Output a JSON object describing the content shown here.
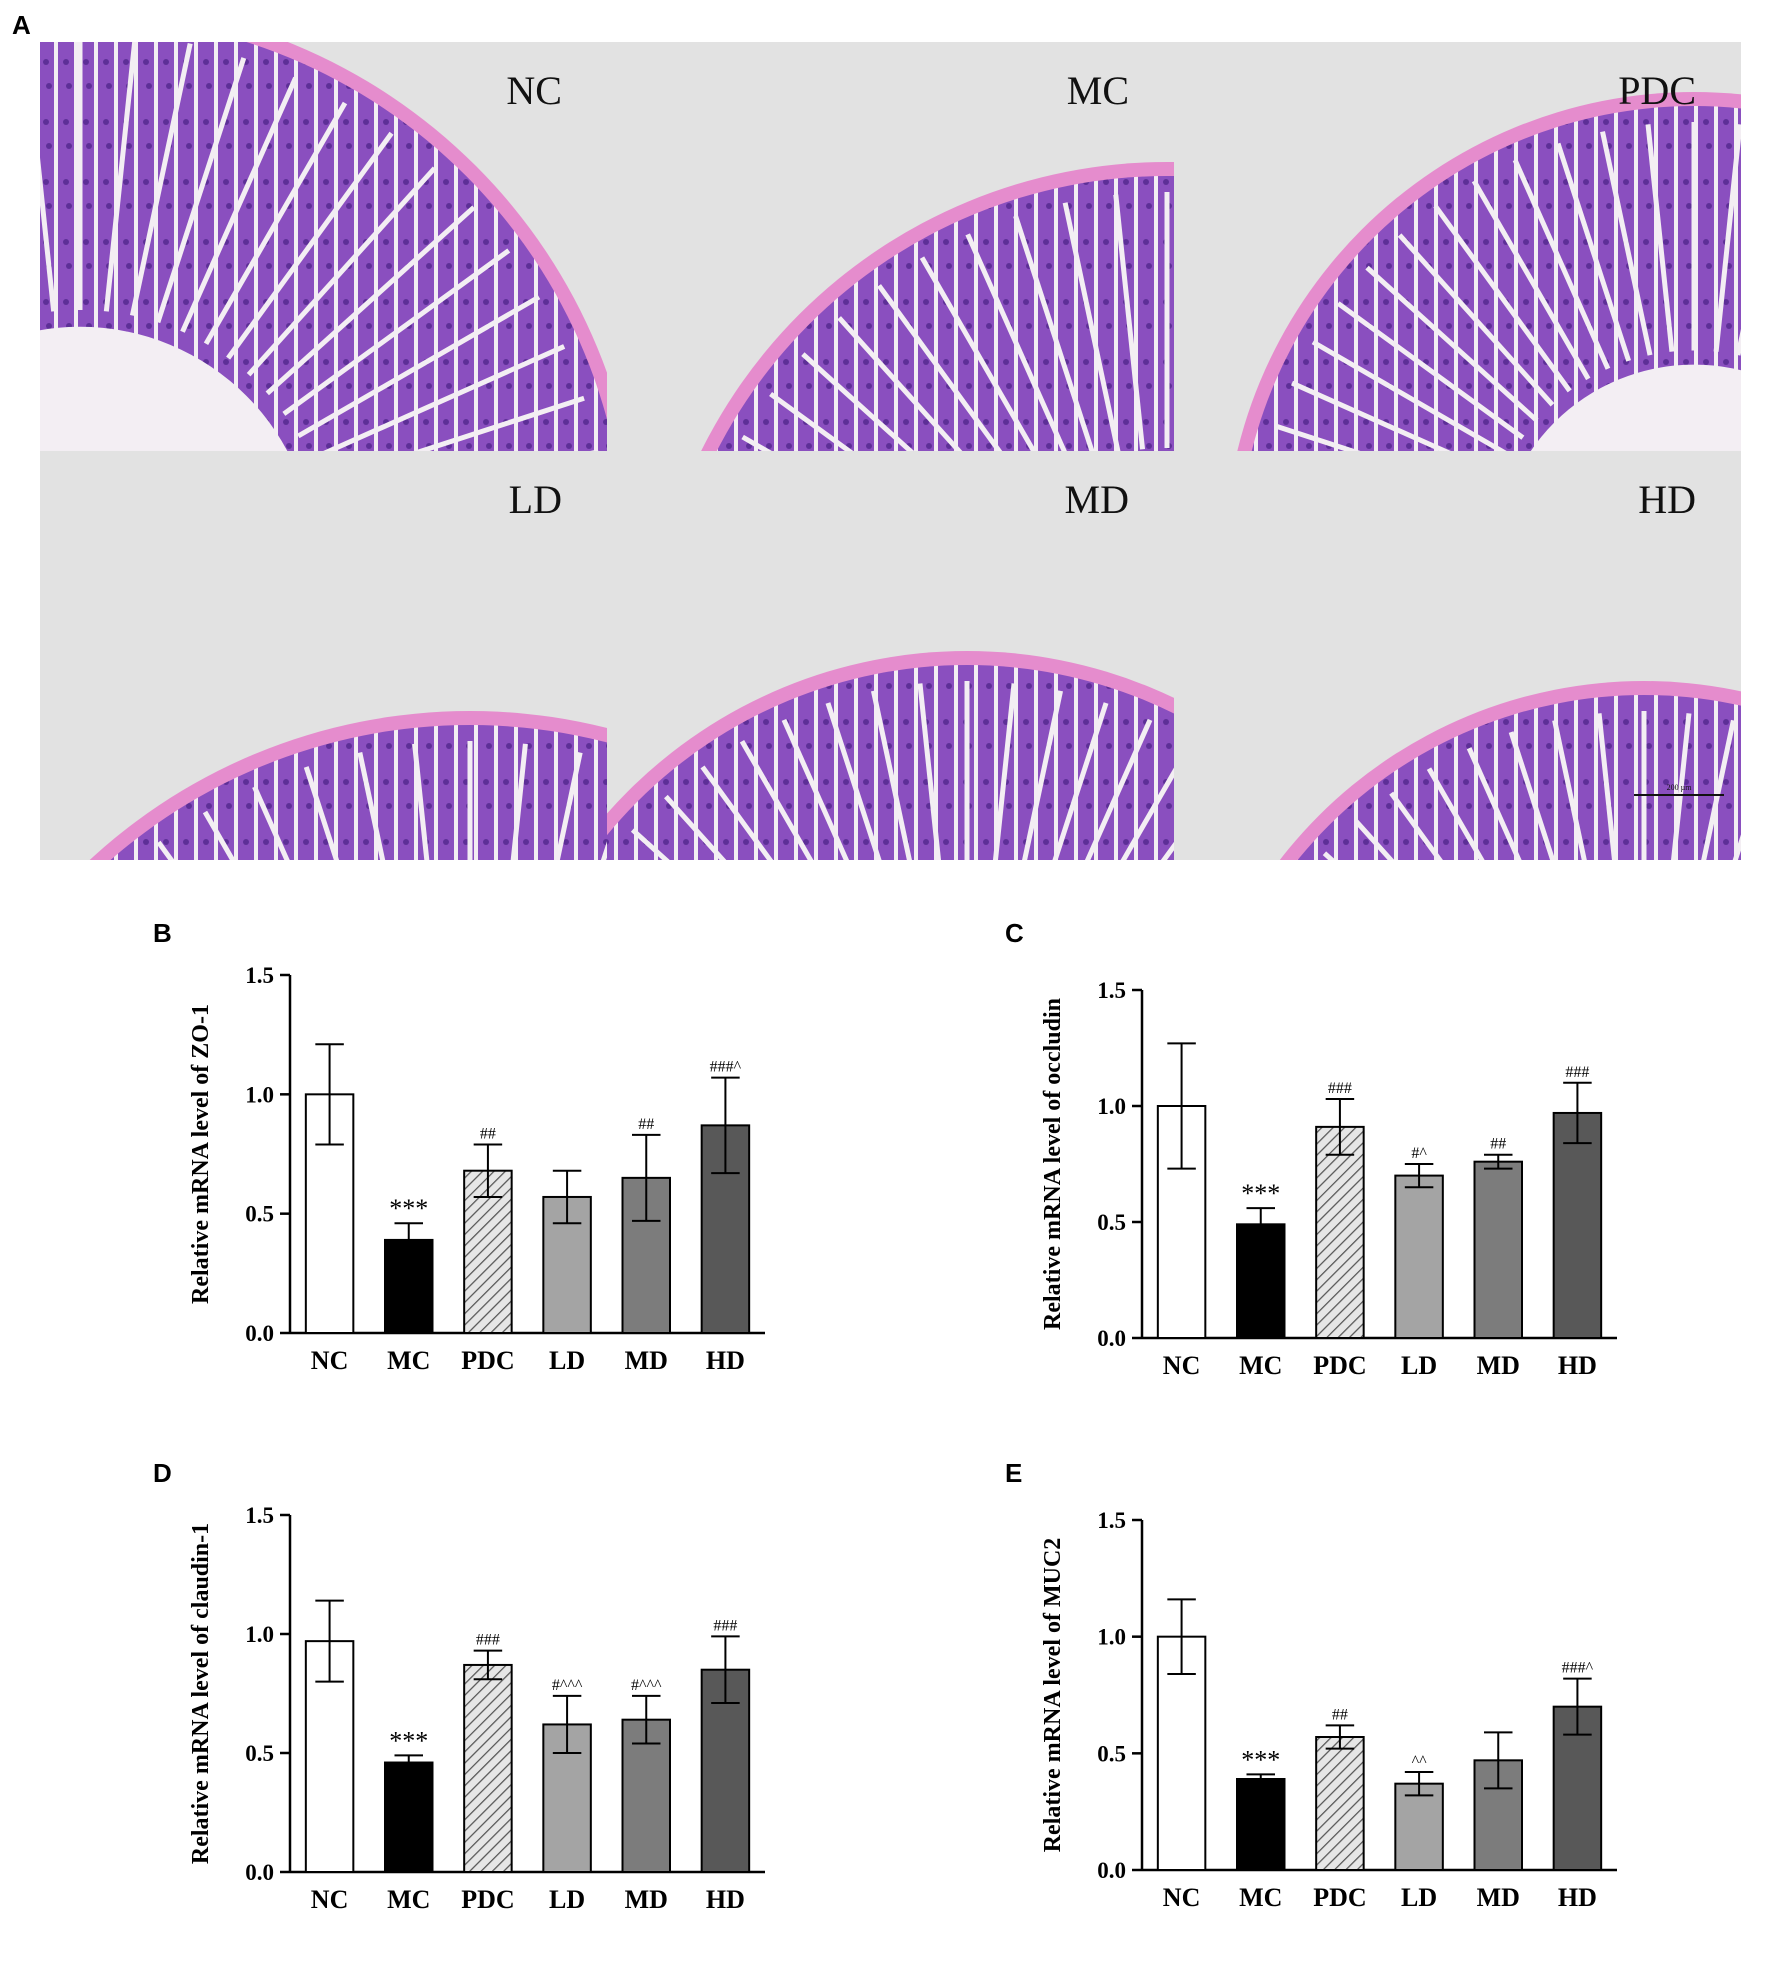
{
  "panel_labels": {
    "a": "A",
    "b": "B",
    "c": "C",
    "d": "D",
    "e": "E"
  },
  "histology": {
    "panel_labels": [
      "NC",
      "MC",
      "PDC",
      "LD",
      "MD",
      "HD"
    ],
    "scale_bar_label": "200 µm",
    "colors": {
      "background": "#e2e2e2",
      "tissue": "#8a4fbf",
      "tissue_dark": "#5d2f97",
      "serosa": "#e58ccd",
      "lumen": "#f3eef3"
    }
  },
  "chart_data": [
    {
      "type": "bar",
      "panel": "B",
      "title": "",
      "xlabel": "",
      "ylabel": "Relative mRNA level of ZO-1",
      "categories": [
        "NC",
        "MC",
        "PDC",
        "LD",
        "MD",
        "HD"
      ],
      "values": [
        1.0,
        0.39,
        0.68,
        0.57,
        0.65,
        0.87
      ],
      "errors": [
        0.21,
        0.07,
        0.11,
        0.11,
        0.18,
        0.2
      ],
      "annotations": [
        "",
        "***",
        "##",
        "",
        "##",
        "###^"
      ],
      "ylim": [
        0,
        1.5
      ],
      "yticks": [
        "0.0",
        "0.5",
        "1.0",
        "1.5"
      ],
      "grid": false
    },
    {
      "type": "bar",
      "panel": "C",
      "title": "",
      "xlabel": "",
      "ylabel": "Relative mRNA level of occludin",
      "categories": [
        "NC",
        "MC",
        "PDC",
        "LD",
        "MD",
        "HD"
      ],
      "values": [
        1.0,
        0.49,
        0.91,
        0.7,
        0.76,
        0.97
      ],
      "errors": [
        0.27,
        0.07,
        0.12,
        0.05,
        0.03,
        0.13
      ],
      "annotations": [
        "",
        "***",
        "###",
        "#^",
        "##",
        "###"
      ],
      "ylim": [
        0,
        1.5
      ],
      "yticks": [
        "0.0",
        "0.5",
        "1.0",
        "1.5"
      ],
      "grid": false
    },
    {
      "type": "bar",
      "panel": "D",
      "title": "",
      "xlabel": "",
      "ylabel": "Relative mRNA level of claudin-1",
      "categories": [
        "NC",
        "MC",
        "PDC",
        "LD",
        "MD",
        "HD"
      ],
      "values": [
        0.97,
        0.46,
        0.87,
        0.62,
        0.64,
        0.85
      ],
      "errors": [
        0.17,
        0.03,
        0.06,
        0.12,
        0.1,
        0.14
      ],
      "annotations": [
        "",
        "***",
        "###",
        "#^^^",
        "#^^^",
        "###"
      ],
      "ylim": [
        0,
        1.5
      ],
      "yticks": [
        "0.0",
        "0.5",
        "1.0",
        "1.5"
      ],
      "grid": false
    },
    {
      "type": "bar",
      "panel": "E",
      "title": "",
      "xlabel": "",
      "ylabel": "Relative mRNA level of MUC2",
      "categories": [
        "NC",
        "MC",
        "PDC",
        "LD",
        "MD",
        "HD"
      ],
      "values": [
        1.0,
        0.39,
        0.57,
        0.37,
        0.47,
        0.7
      ],
      "errors": [
        0.16,
        0.02,
        0.05,
        0.05,
        0.12,
        0.12
      ],
      "annotations": [
        "",
        "***",
        "##",
        "^^",
        "",
        "###^"
      ],
      "ylim": [
        0,
        1.5
      ],
      "yticks": [
        "0.0",
        "0.5",
        "1.0",
        "1.5"
      ],
      "grid": false
    }
  ],
  "bar_styles": [
    {
      "fill": "#ffffff",
      "pattern": "none"
    },
    {
      "fill": "#000000",
      "pattern": "none"
    },
    {
      "fill": "#d8d8d8",
      "pattern": "hatch"
    },
    {
      "fill": "#a4a4a4",
      "pattern": "none"
    },
    {
      "fill": "#7c7c7c",
      "pattern": "none"
    },
    {
      "fill": "#585858",
      "pattern": "none"
    }
  ]
}
